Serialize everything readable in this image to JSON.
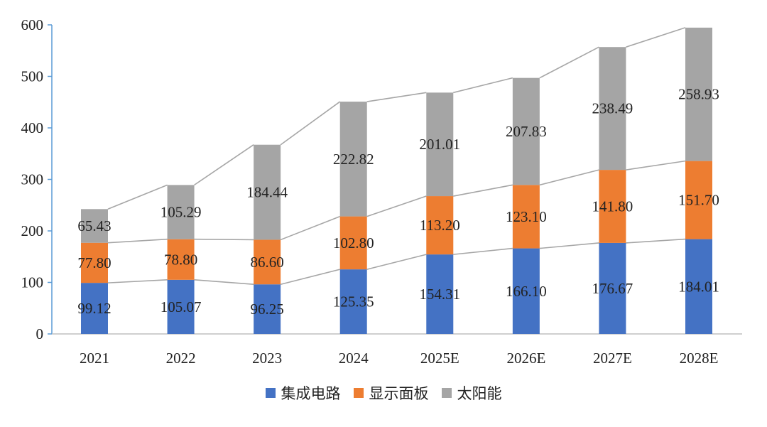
{
  "chart_data": {
    "type": "bar",
    "stacked": true,
    "categories": [
      "2021",
      "2022",
      "2023",
      "2024",
      "2025E",
      "2026E",
      "2027E",
      "2028E"
    ],
    "series": [
      {
        "name": "集成电路",
        "color": "#4472C4",
        "values": [
          99.12,
          105.07,
          96.25,
          125.35,
          154.31,
          166.1,
          176.67,
          184.01
        ],
        "labels": [
          "99.12",
          "105.07",
          "96.25",
          "125.35",
          "154.31",
          "166.10",
          "176.67",
          "184.01"
        ]
      },
      {
        "name": "显示面板",
        "color": "#ED7D31",
        "values": [
          77.8,
          78.8,
          86.6,
          102.8,
          113.2,
          123.1,
          141.8,
          151.7
        ],
        "labels": [
          "77.80",
          "78.80",
          "86.60",
          "102.80",
          "113.20",
          "123.10",
          "141.80",
          "151.70"
        ]
      },
      {
        "name": "太阳能",
        "color": "#A5A5A5",
        "values": [
          65.43,
          105.29,
          184.44,
          222.82,
          201.01,
          207.83,
          238.49,
          258.93
        ],
        "labels": [
          "65.43",
          "105.29",
          "184.44",
          "222.82",
          "201.01",
          "207.83",
          "238.49",
          "258.93"
        ]
      }
    ],
    "ylim": [
      0,
      600
    ],
    "yticks": [
      "0",
      "100",
      "200",
      "300",
      "400",
      "500",
      "600"
    ],
    "series_lines": true,
    "grid": false,
    "legend_position": "bottom",
    "title": "",
    "xlabel": "",
    "ylabel": ""
  }
}
